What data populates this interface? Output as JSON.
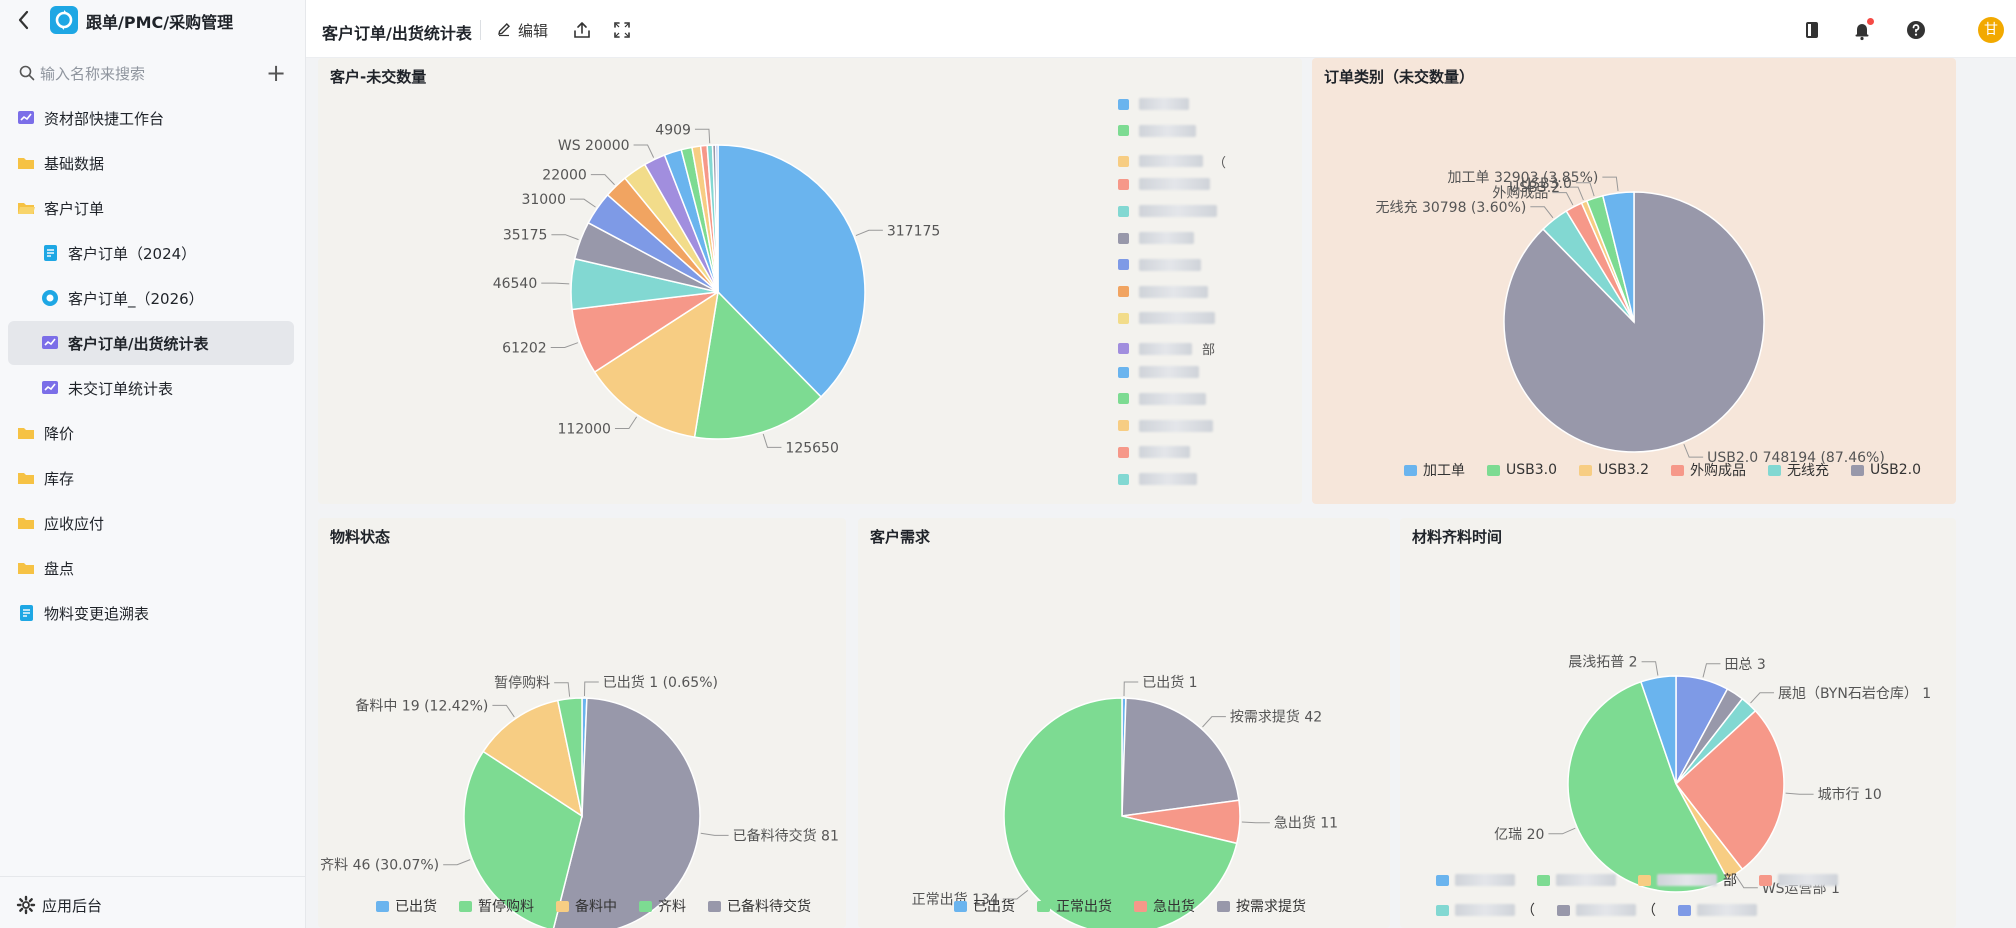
{
  "app": {
    "title": "跟单/PMC/采购管理",
    "search_placeholder": "输入名称来搜索"
  },
  "sidebar": {
    "items": [
      {
        "label": "资材部快捷工作台",
        "icon": "dashboard-icon",
        "active": false
      },
      {
        "label": "基础数据",
        "icon": "folder-icon",
        "active": false
      },
      {
        "label": "客户订单",
        "icon": "folder-open-icon",
        "active": false
      },
      {
        "label": "客户订单（2024）",
        "icon": "table-icon",
        "active": false
      },
      {
        "label": "客户订单_（2026）",
        "icon": "form-icon",
        "active": false
      },
      {
        "label": "客户订单/出货统计表",
        "icon": "dashboard-icon",
        "active": true
      },
      {
        "label": "未交订单统计表",
        "icon": "dashboard-icon",
        "active": false
      },
      {
        "label": "降价",
        "icon": "folder-icon",
        "active": false
      },
      {
        "label": "库存",
        "icon": "folder-icon",
        "active": false
      },
      {
        "label": "应收应付",
        "icon": "folder-icon",
        "active": false
      },
      {
        "label": "盘点",
        "icon": "folder-icon",
        "active": false
      },
      {
        "label": "物料变更追溯表",
        "icon": "table-icon",
        "active": false
      }
    ],
    "footer_label": "应用后台"
  },
  "topbar": {
    "title": "客户订单/出货统计表",
    "edit_label": "编辑",
    "avatar_text": "甘"
  },
  "colors": {
    "blue": "#6ab4ee",
    "green": "#7ddb92",
    "yellow": "#f7cd83",
    "red": "#f69889",
    "teal": "#82d8d2",
    "gray": "#9898aa",
    "indigo": "#7e9ae6",
    "orange": "#f1a461",
    "lightyellow": "#f2dc8a",
    "purple": "#a18ede"
  },
  "chart_data": [
    {
      "type": "pie",
      "title": "客户-未交数量",
      "start_angle": 0,
      "slices": [
        {
          "label": "",
          "value": 317175,
          "display": "317175",
          "color": "#6ab4ee"
        },
        {
          "label": "",
          "value": 125650,
          "display": "125650",
          "color": "#7ddb92"
        },
        {
          "label": "",
          "value": 112000,
          "display": "112000",
          "color": "#f7cd83"
        },
        {
          "label": "",
          "value": 61202,
          "display": "61202",
          "color": "#f69889"
        },
        {
          "label": "",
          "value": 46540,
          "display": "46540",
          "color": "#82d8d2"
        },
        {
          "label": "",
          "value": 35175,
          "display": "35175",
          "color": "#9898aa"
        },
        {
          "label": "",
          "value": 31000,
          "display": "31000",
          "color": "#7e9ae6"
        },
        {
          "label": "",
          "value": 22000,
          "display": "22000",
          "color": "#f1a461"
        },
        {
          "label": "",
          "value": 22000,
          "display": "",
          "color": "#f2dc8a"
        },
        {
          "label": "WS",
          "value": 20000,
          "display": "20000",
          "color": "#a18ede"
        },
        {
          "label": "",
          "value": 16000,
          "display": "",
          "color": "#6ab4ee"
        },
        {
          "label": "",
          "value": 10000,
          "display": "",
          "color": "#7ddb92"
        },
        {
          "label": "",
          "value": 8000,
          "display": "",
          "color": "#f7cd83"
        },
        {
          "label": "",
          "value": 6000,
          "display": "",
          "color": "#f69889"
        },
        {
          "label": "",
          "value": 4909,
          "display": "4909",
          "color": "#82d8d2"
        },
        {
          "label": "",
          "value": 3000,
          "display": "",
          "color": "#9898aa"
        },
        {
          "label": "",
          "value": 2000,
          "display": "",
          "color": "#7e9ae6"
        }
      ],
      "legend": [
        {
          "text": "",
          "color": "#6ab4ee"
        },
        {
          "text": "",
          "color": "#7ddb92"
        },
        {
          "text": "（",
          "color": "#f7cd83"
        },
        {
          "text": "",
          "color": "#f69889"
        },
        {
          "text": "",
          "color": "#82d8d2"
        },
        {
          "text": "",
          "color": "#9898aa"
        },
        {
          "text": "",
          "color": "#7e9ae6"
        },
        {
          "text": "",
          "color": "#f1a461"
        },
        {
          "text": "",
          "color": "#f2dc8a"
        },
        {
          "text": "部",
          "color": "#a18ede"
        },
        {
          "text": "",
          "color": "#6ab4ee"
        },
        {
          "text": "",
          "color": "#7ddb92"
        },
        {
          "text": "",
          "color": "#f7cd83"
        },
        {
          "text": "",
          "color": "#f69889"
        },
        {
          "text": "",
          "color": "#82d8d2"
        }
      ]
    },
    {
      "type": "pie",
      "title": "订单类别（未交数量）",
      "start_angle": 0,
      "slices": [
        {
          "label": "USB2.0",
          "value": 748194,
          "display": "748194 (87.46%)",
          "color": "#9898aa"
        },
        {
          "label": "无线充",
          "value": 30798,
          "display": "30798 (3.60%)",
          "color": "#82d8d2"
        },
        {
          "label": "外购成品",
          "value": 18000,
          "display": "",
          "color": "#f69889"
        },
        {
          "label": "USB3.2",
          "value": 6000,
          "display": "",
          "color": "#f7cd83"
        },
        {
          "label": "USB3.0",
          "value": 17500,
          "display": "",
          "color": "#7ddb92"
        },
        {
          "label": "加工单",
          "value": 32903,
          "display": "32903 (3.85%)",
          "color": "#6ab4ee"
        }
      ],
      "legend": [
        {
          "text": "加工单",
          "color": "#6ab4ee"
        },
        {
          "text": "USB3.0",
          "color": "#7ddb92"
        },
        {
          "text": "USB3.2",
          "color": "#f7cd83"
        },
        {
          "text": "外购成品",
          "color": "#f69889"
        },
        {
          "text": "无线充",
          "color": "#82d8d2"
        },
        {
          "text": "USB2.0",
          "color": "#9898aa"
        }
      ]
    },
    {
      "type": "pie",
      "title": "物料状态",
      "start_angle": 0,
      "slices": [
        {
          "label": "已出货",
          "value": 1,
          "display": "1 (0.65%)",
          "color": "#6ab4ee"
        },
        {
          "label": "已备料待交货",
          "value": 81,
          "display": "81",
          "color": "#9898aa"
        },
        {
          "label": "齐料",
          "value": 46,
          "display": "46 (30.07%)",
          "color": "#7ddb92"
        },
        {
          "label": "备料中",
          "value": 19,
          "display": "19 (12.42%)",
          "color": "#f7cd83"
        },
        {
          "label": "暂停购料",
          "value": 5,
          "display": "",
          "color": "#7ddb92"
        }
      ],
      "legend": [
        {
          "text": "已出货",
          "color": "#6ab4ee"
        },
        {
          "text": "暂停购料",
          "color": "#7ddb92"
        },
        {
          "text": "备料中",
          "color": "#f7cd83"
        },
        {
          "text": "齐料",
          "color": "#7ddb92"
        },
        {
          "text": "已备料待交货",
          "color": "#9898aa"
        }
      ]
    },
    {
      "type": "pie",
      "title": "客户需求",
      "start_angle": 0,
      "slices": [
        {
          "label": "已出货",
          "value": 1,
          "display": "1",
          "color": "#6ab4ee"
        },
        {
          "label": "按需求提货",
          "value": 42,
          "display": "42",
          "color": "#9898aa"
        },
        {
          "label": "急出货",
          "value": 11,
          "display": "11",
          "color": "#f69889"
        },
        {
          "label": "正常出货",
          "value": 134,
          "display": "134",
          "color": "#7ddb92"
        }
      ],
      "legend": [
        {
          "text": "已出货",
          "color": "#6ab4ee"
        },
        {
          "text": "正常出货",
          "color": "#7ddb92"
        },
        {
          "text": "急出货",
          "color": "#f69889"
        },
        {
          "text": "按需求提货",
          "color": "#9898aa"
        }
      ]
    },
    {
      "type": "pie",
      "title": "材料齐料时间",
      "start_angle": 0,
      "slices": [
        {
          "label": "田总",
          "value": 3,
          "display": "3",
          "color": "#7e9ae6"
        },
        {
          "label": "",
          "value": 1,
          "display": "",
          "color": "#9898aa"
        },
        {
          "label": "展旭（BYN石岩仓库）",
          "value": 1,
          "display": "1",
          "color": "#82d8d2"
        },
        {
          "label": "城市行",
          "value": 10,
          "display": "10",
          "color": "#f69889"
        },
        {
          "label": "WS运营部",
          "value": 1,
          "display": "1",
          "color": "#f7cd83"
        },
        {
          "label": "亿瑞",
          "value": 20,
          "display": "20",
          "color": "#7ddb92"
        },
        {
          "label": "晨浅拓普",
          "value": 2,
          "display": "2",
          "color": "#6ab4ee"
        }
      ],
      "legend": [
        {
          "text": "",
          "color": "#6ab4ee"
        },
        {
          "text": "",
          "color": "#7ddb92"
        },
        {
          "text": "部",
          "color": "#f7cd83"
        },
        {
          "text": "",
          "color": "#f69889"
        },
        {
          "text": "（",
          "color": "#82d8d2"
        },
        {
          "text": "（",
          "color": "#9898aa"
        },
        {
          "text": "",
          "color": "#7e9ae6"
        }
      ]
    }
  ]
}
